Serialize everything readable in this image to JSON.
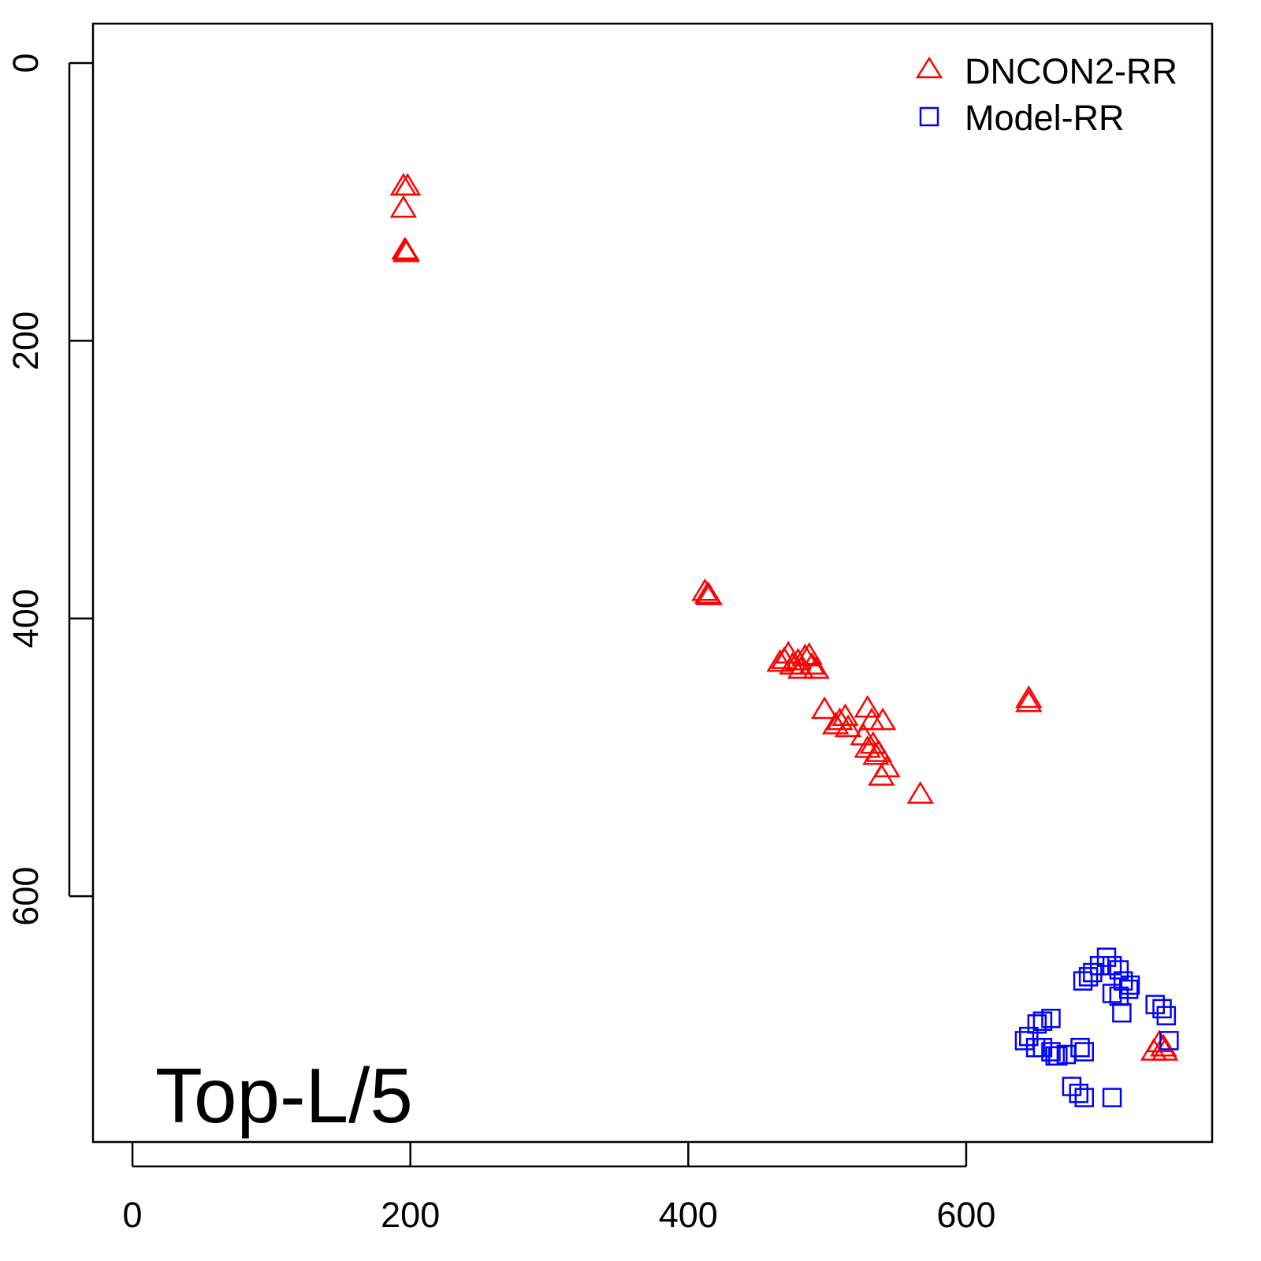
{
  "chart_data": {
    "type": "scatter",
    "title": "",
    "xlabel": "",
    "ylabel": "",
    "xlim": [
      -28.4,
      777
    ],
    "ylim": [
      777,
      -28.4
    ],
    "y_reversed": true,
    "grid": false,
    "x_ticks": [
      "0",
      "200",
      "400",
      "600"
    ],
    "y_ticks": [
      "0",
      "200",
      "400",
      "600"
    ],
    "annotation": "Top-L/5",
    "legend_position": "top-right",
    "colors": {
      "DNCON2-RR": "#ff0000",
      "Model-RR": "#0000ff"
    },
    "series": [
      {
        "name": "DNCON2-RR",
        "marker": "triangle",
        "points": [
          [
            195,
            89
          ],
          [
            198,
            89
          ],
          [
            195,
            105
          ],
          [
            196,
            135
          ],
          [
            197,
            136
          ],
          [
            197,
            137
          ],
          [
            412,
            381
          ],
          [
            415,
            384
          ],
          [
            414,
            383
          ],
          [
            469,
            430
          ],
          [
            472,
            426
          ],
          [
            475,
            434
          ],
          [
            479,
            431
          ],
          [
            484,
            428
          ],
          [
            487,
            427
          ],
          [
            489,
            434
          ],
          [
            492,
            437
          ],
          [
            481,
            437
          ],
          [
            466,
            432
          ],
          [
            498,
            466
          ],
          [
            509,
            474
          ],
          [
            513,
            471
          ],
          [
            515,
            479
          ],
          [
            506,
            477
          ],
          [
            529,
            465
          ],
          [
            532,
            474
          ],
          [
            540,
            474
          ],
          [
            526,
            485
          ],
          [
            529,
            494
          ],
          [
            533,
            491
          ],
          [
            537,
            497
          ],
          [
            539,
            514
          ],
          [
            543,
            508
          ],
          [
            535,
            499
          ],
          [
            567,
            527
          ],
          [
            645,
            458
          ],
          [
            645,
            461
          ],
          [
            739,
            706
          ],
          [
            742,
            709
          ],
          [
            735,
            712
          ],
          [
            743,
            712
          ]
        ]
      },
      {
        "name": "Model-RR",
        "marker": "square",
        "points": [
          [
            701,
            644
          ],
          [
            705,
            650
          ],
          [
            696,
            650
          ],
          [
            691,
            655
          ],
          [
            688,
            658
          ],
          [
            710,
            653
          ],
          [
            713,
            661
          ],
          [
            717,
            667
          ],
          [
            718,
            664
          ],
          [
            710,
            672
          ],
          [
            705,
            670
          ],
          [
            684,
            661
          ],
          [
            712,
            684
          ],
          [
            736,
            678
          ],
          [
            741,
            681
          ],
          [
            744,
            686
          ],
          [
            746,
            704
          ],
          [
            645,
            701
          ],
          [
            642,
            704
          ],
          [
            651,
            692
          ],
          [
            655,
            690
          ],
          [
            661,
            688
          ],
          [
            650,
            709
          ],
          [
            655,
            709
          ],
          [
            661,
            712
          ],
          [
            666,
            715
          ],
          [
            672,
            714
          ],
          [
            664,
            715
          ],
          [
            685,
            712
          ],
          [
            682,
            709
          ],
          [
            676,
            737
          ],
          [
            681,
            742
          ],
          [
            685,
            745
          ],
          [
            705,
            745
          ]
        ]
      }
    ]
  }
}
